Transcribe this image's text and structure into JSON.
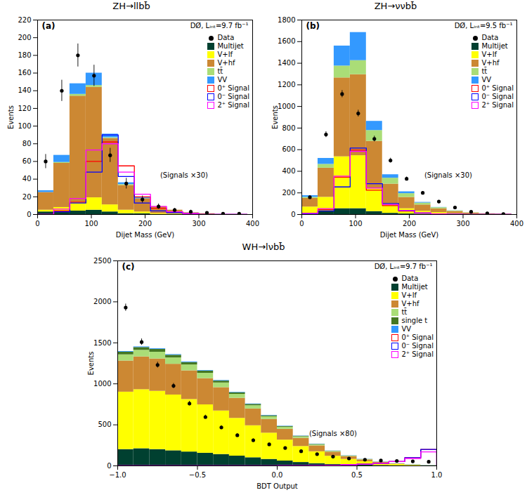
{
  "chart_data": [
    {
      "type": "histogram",
      "stacked": true,
      "grid": false,
      "legend": "upper right",
      "title": "ZH→llbb̄",
      "xlabel": "Dijet Mass (GeV)",
      "ylabel": "Events",
      "annotations": [
        "(a)",
        "DØ, Lᵢₙₜ=9.7 fb⁻¹",
        "(Signals ×30)"
      ],
      "xlim": [
        0,
        400
      ],
      "ylim": [
        0,
        220
      ],
      "xticks": [
        0,
        100,
        200,
        300,
        400
      ],
      "yticks": [
        0,
        20,
        40,
        60,
        80,
        100,
        120,
        140,
        160,
        180,
        200,
        220
      ],
      "bins": [
        0,
        30,
        60,
        90,
        120,
        150,
        180,
        210,
        240,
        270,
        300,
        330,
        360,
        390
      ],
      "series": [
        {
          "name": "Data",
          "type": "scatter",
          "marker": "circle",
          "color": "black",
          "x": [
            15,
            45,
            75,
            105,
            135,
            165,
            195,
            225,
            255,
            285,
            315,
            345,
            375
          ],
          "values": [
            60,
            140,
            180,
            157,
            67,
            35,
            17,
            9,
            5,
            3,
            2,
            1,
            1
          ],
          "errors": [
            8,
            12,
            13,
            12,
            8,
            6,
            4,
            3,
            2,
            2,
            1,
            1,
            1
          ]
        },
        {
          "name": "Multijet",
          "type": "bar",
          "color": "#004030",
          "values": [
            3,
            4,
            4,
            5,
            3,
            1,
            1,
            0,
            0,
            0,
            0,
            0,
            0
          ]
        },
        {
          "name": "V+lf",
          "type": "bar",
          "color": "#ffff00",
          "values": [
            2,
            4,
            10,
            14,
            8,
            4,
            2,
            1,
            1,
            0,
            0,
            0,
            0
          ]
        },
        {
          "name": "V+hf",
          "type": "bar",
          "color": "#cc8833",
          "values": [
            20,
            50,
            120,
            125,
            75,
            28,
            15,
            8,
            4,
            2,
            1,
            0,
            0
          ]
        },
        {
          "name": "tt̄",
          "type": "bar",
          "color": "#aadd77",
          "values": [
            0,
            1,
            2,
            2,
            1,
            1,
            0,
            0,
            0,
            0,
            0,
            0,
            0
          ]
        },
        {
          "name": "VV",
          "type": "bar",
          "color": "#3399ff",
          "values": [
            2,
            8,
            12,
            14,
            4,
            2,
            1,
            0,
            0,
            0,
            0,
            0,
            0
          ]
        },
        {
          "name": "0⁺ Signal",
          "type": "step",
          "color": "red",
          "values": [
            0,
            4,
            14,
            60,
            82,
            55,
            20,
            7,
            3,
            1,
            0,
            0,
            0
          ]
        },
        {
          "name": "0⁻ Signal",
          "type": "step",
          "color": "blue",
          "values": [
            0,
            3,
            13,
            48,
            90,
            43,
            13,
            4,
            2,
            1,
            0,
            0,
            0
          ]
        },
        {
          "name": "2⁺ Signal",
          "type": "step",
          "color": "magenta",
          "values": [
            0,
            6,
            18,
            73,
            80,
            48,
            23,
            9,
            3,
            1,
            0,
            0,
            0
          ]
        }
      ]
    },
    {
      "type": "histogram",
      "stacked": true,
      "grid": false,
      "legend": "upper right",
      "title": "ZH→ννbb̄",
      "xlabel": "Dijet Mass (GeV)",
      "ylabel": "Events",
      "annotations": [
        "(b)",
        "DØ, Lᵢₙₜ=9.5 fb⁻¹",
        "(Signals ×30)"
      ],
      "xlim": [
        0,
        400
      ],
      "ylim": [
        0,
        1800
      ],
      "xticks": [
        0,
        100,
        200,
        300,
        400
      ],
      "yticks": [
        0,
        200,
        400,
        600,
        800,
        1000,
        1200,
        1400,
        1600,
        1800
      ],
      "bins": [
        0,
        30,
        60,
        90,
        120,
        150,
        180,
        210,
        240,
        270,
        300,
        330,
        360,
        390
      ],
      "series": [
        {
          "name": "Data",
          "type": "scatter",
          "marker": "circle",
          "color": "black",
          "x": [
            15,
            45,
            75,
            105,
            135,
            165,
            195,
            225,
            255,
            285,
            315,
            345,
            375
          ],
          "values": [
            160,
            740,
            1115,
            935,
            700,
            500,
            330,
            200,
            120,
            65,
            25,
            10,
            5
          ],
          "errors": [
            13,
            27,
            33,
            31,
            26,
            22,
            18,
            14,
            11,
            8,
            5,
            3,
            2
          ]
        },
        {
          "name": "Multijet",
          "type": "bar",
          "color": "#004030",
          "values": [
            10,
            30,
            55,
            55,
            28,
            12,
            6,
            3,
            2,
            1,
            0,
            0,
            0
          ]
        },
        {
          "name": "V+lf",
          "type": "bar",
          "color": "#ffff00",
          "values": [
            60,
            130,
            480,
            490,
            210,
            85,
            48,
            28,
            16,
            8,
            4,
            2,
            1
          ]
        },
        {
          "name": "V+hf",
          "type": "bar",
          "color": "#cc8833",
          "values": [
            80,
            270,
            730,
            750,
            440,
            185,
            105,
            58,
            36,
            20,
            10,
            5,
            3
          ]
        },
        {
          "name": "tt̄",
          "type": "bar",
          "color": "#aadd77",
          "values": [
            10,
            35,
            110,
            130,
            100,
            55,
            35,
            18,
            10,
            5,
            2,
            1,
            1
          ]
        },
        {
          "name": "VV",
          "type": "bar",
          "color": "#3399ff",
          "values": [
            15,
            55,
            185,
            260,
            85,
            32,
            17,
            6,
            2,
            1,
            0,
            0,
            0
          ]
        },
        {
          "name": "0⁺ Signal",
          "type": "step",
          "color": "red",
          "values": [
            10,
            45,
            345,
            595,
            225,
            82,
            32,
            12,
            5,
            2,
            1,
            0,
            0
          ]
        },
        {
          "name": "0⁻ Signal",
          "type": "step",
          "color": "blue",
          "values": [
            8,
            33,
            255,
            615,
            285,
            102,
            37,
            13,
            5,
            2,
            1,
            0,
            0
          ]
        },
        {
          "name": "2⁺ Signal",
          "type": "step",
          "color": "magenta",
          "values": [
            10,
            55,
            355,
            585,
            245,
            92,
            37,
            16,
            5,
            2,
            1,
            0,
            0
          ]
        }
      ]
    },
    {
      "type": "histogram",
      "stacked": true,
      "grid": false,
      "legend": "upper right",
      "title": "WH→lνbb̄",
      "xlabel": "BDT Output",
      "ylabel": "Events",
      "annotations": [
        "(c)",
        "DØ, Lᵢₙₜ=9.7 fb⁻¹",
        "(Signals ×80)"
      ],
      "xlim": [
        -1,
        1
      ],
      "ylim": [
        0,
        2500
      ],
      "xticks": [
        {
          "value": -1,
          "label": "−1.0"
        },
        {
          "value": -0.5,
          "label": "−0.5"
        },
        {
          "value": 0,
          "label": "0.0"
        },
        {
          "value": 0.5,
          "label": "0.5"
        },
        {
          "value": 1,
          "label": "1.0"
        }
      ],
      "yticks": [
        0,
        500,
        1000,
        1500,
        2000,
        2500
      ],
      "bins": [
        -1.0,
        -0.9,
        -0.8,
        -0.7,
        -0.6,
        -0.5,
        -0.4,
        -0.3,
        -0.2,
        -0.1,
        0.0,
        0.1,
        0.2,
        0.3,
        0.4,
        0.5,
        0.6,
        0.7,
        0.8,
        0.9,
        1.0
      ],
      "series": [
        {
          "name": "Data",
          "type": "scatter",
          "marker": "circle",
          "color": "black",
          "x": [
            -0.95,
            -0.85,
            -0.75,
            -0.65,
            -0.55,
            -0.45,
            -0.35,
            -0.25,
            -0.15,
            -0.05,
            0.05,
            0.15,
            0.25,
            0.35,
            0.45,
            0.55,
            0.65,
            0.75,
            0.85,
            0.95
          ],
          "values": [
            1930,
            1510,
            1230,
            975,
            760,
            595,
            468,
            373,
            312,
            262,
            218,
            178,
            143,
            113,
            90,
            75,
            65,
            60,
            55,
            50
          ],
          "errors": [
            44,
            39,
            35,
            31,
            28,
            24,
            22,
            19,
            18,
            16,
            15,
            13,
            12,
            11,
            9,
            9,
            8,
            8,
            7,
            7
          ]
        },
        {
          "name": "Multijet",
          "type": "bar",
          "color": "#004030",
          "values": [
            200,
            210,
            200,
            185,
            170,
            155,
            140,
            120,
            100,
            80,
            60,
            42,
            28,
            18,
            12,
            8,
            5,
            3,
            2,
            1
          ]
        },
        {
          "name": "V+lf",
          "type": "bar",
          "color": "#ffff00",
          "values": [
            700,
            720,
            710,
            680,
            640,
            590,
            530,
            460,
            390,
            320,
            255,
            195,
            145,
            100,
            68,
            44,
            26,
            14,
            7,
            3
          ]
        },
        {
          "name": "V+hf",
          "type": "bar",
          "color": "#cc8833",
          "values": [
            380,
            400,
            395,
            375,
            350,
            320,
            285,
            245,
            205,
            168,
            132,
            100,
            72,
            50,
            34,
            22,
            13,
            7,
            3,
            1
          ]
        },
        {
          "name": "tt̄",
          "type": "bar",
          "color": "#aadd77",
          "values": [
            75,
            80,
            82,
            78,
            72,
            65,
            57,
            48,
            40,
            32,
            25,
            18,
            13,
            9,
            6,
            4,
            2,
            1,
            1,
            0
          ]
        },
        {
          "name": "single t",
          "type": "bar",
          "color": "#447722",
          "values": [
            32,
            34,
            34,
            32,
            29,
            26,
            23,
            19,
            16,
            12,
            9,
            7,
            5,
            3,
            2,
            1,
            1,
            0,
            0,
            0
          ]
        },
        {
          "name": "VV",
          "type": "bar",
          "color": "#3399ff",
          "values": [
            8,
            8,
            8,
            8,
            8,
            7,
            7,
            6,
            5,
            5,
            4,
            3,
            3,
            2,
            2,
            2,
            2,
            2,
            3,
            3
          ]
        },
        {
          "name": "0⁺ Signal",
          "type": "step",
          "color": "red",
          "values": [
            0,
            0,
            0,
            0,
            0,
            0,
            0,
            0,
            0,
            1,
            2,
            3,
            5,
            8,
            13,
            20,
            32,
            52,
            100,
            200
          ]
        },
        {
          "name": "0⁻ Signal",
          "type": "step",
          "color": "blue",
          "values": [
            0,
            0,
            0,
            0,
            0,
            0,
            0,
            0,
            0,
            1,
            2,
            3,
            5,
            8,
            13,
            20,
            32,
            52,
            100,
            200
          ]
        },
        {
          "name": "2⁺ Signal",
          "type": "step",
          "color": "magenta",
          "values": [
            0,
            0,
            0,
            0,
            0,
            0,
            0,
            0,
            0,
            1,
            2,
            3,
            5,
            8,
            13,
            20,
            32,
            52,
            90,
            170
          ]
        }
      ]
    }
  ]
}
